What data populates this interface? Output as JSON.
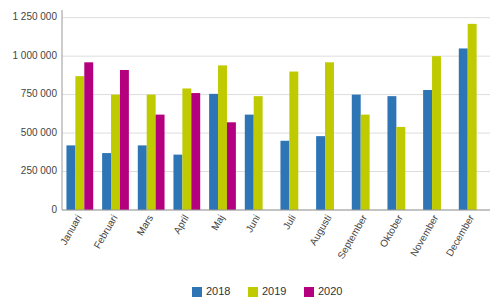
{
  "chart_data": {
    "type": "bar",
    "categories": [
      "Januari",
      "Februari",
      "Mars",
      "April",
      "Maj",
      "Juni",
      "Juli",
      "Augusti",
      "September",
      "Oktober",
      "November",
      "December"
    ],
    "series": [
      {
        "name": "2018",
        "color": "#2E75B6",
        "values": [
          420000,
          370000,
          420000,
          360000,
          755000,
          620000,
          450000,
          480000,
          750000,
          740000,
          780000,
          1050000
        ]
      },
      {
        "name": "2019",
        "color": "#BFCA00",
        "values": [
          870000,
          750000,
          750000,
          790000,
          940000,
          740000,
          900000,
          960000,
          620000,
          540000,
          1000000,
          1210000
        ]
      },
      {
        "name": "2020",
        "color": "#B4007E",
        "values": [
          960000,
          910000,
          620000,
          760000,
          570000,
          null,
          null,
          null,
          null,
          null,
          null,
          null
        ]
      }
    ],
    "ylim": [
      0,
      1300000
    ],
    "yticks": [
      0,
      {
        "value": 250000,
        "label": "250 000"
      },
      {
        "value": 500000,
        "label": "500 000"
      },
      {
        "value": 750000,
        "label": "750 000"
      },
      {
        "value": 1000000,
        "label": "1 000 000"
      },
      {
        "value": 1250000,
        "label": "1 250 000"
      }
    ],
    "grid": true,
    "legend": "bottom"
  }
}
